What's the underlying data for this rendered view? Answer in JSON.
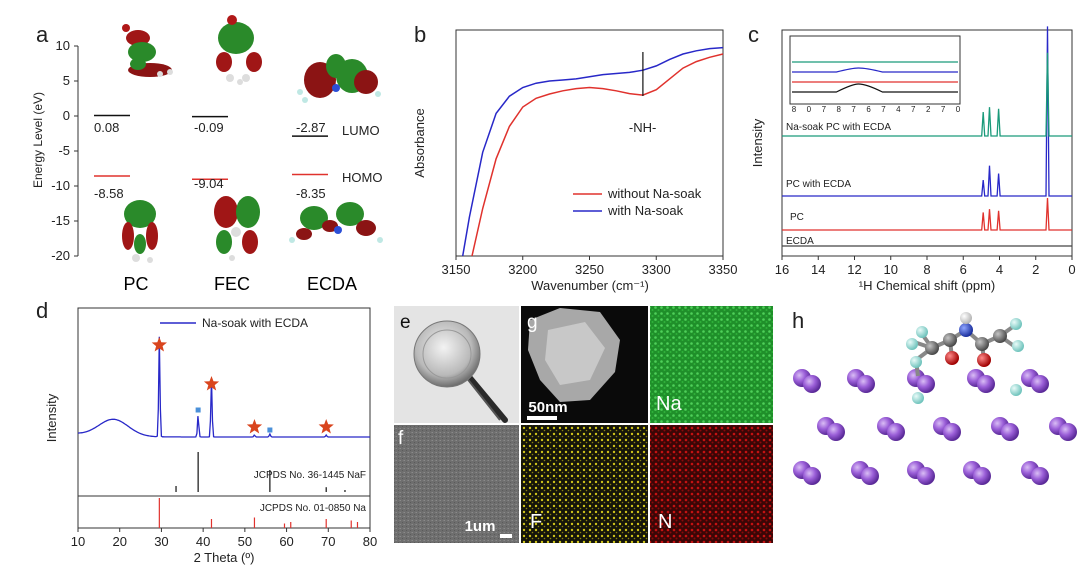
{
  "panels": {
    "a": "a",
    "b": "b",
    "c": "c",
    "d": "d",
    "e": "e",
    "f": "f",
    "g": "g",
    "h": "h"
  },
  "chart_data": [
    {
      "id": "a",
      "type": "scatter",
      "ylabel": "Energy Level (eV)",
      "ylim": [
        -20,
        10
      ],
      "yticks": [
        10,
        5,
        0,
        -5,
        -10,
        -15,
        -20
      ],
      "categories": [
        "PC",
        "FEC",
        "ECDA"
      ],
      "series": [
        {
          "name": "LUMO",
          "values": [
            0.08,
            -0.09,
            -2.87
          ],
          "labels": [
            "0.08",
            "-0.09",
            "-2.87"
          ],
          "color": "#111111"
        },
        {
          "name": "HOMO",
          "values": [
            -8.58,
            -9.04,
            -8.35
          ],
          "labels": [
            "-8.58",
            "-9.04",
            "-8.35"
          ],
          "color": "#e0322d"
        }
      ]
    },
    {
      "id": "b",
      "type": "line",
      "xlabel": "Wavenumber (cm⁻¹)",
      "ylabel": "Absorbance",
      "xlim": [
        3150,
        3350
      ],
      "xticks": [
        3150,
        3200,
        3250,
        3300,
        3350
      ],
      "annotation": "-NH-",
      "annotation_x": 3290,
      "legend_position": "bottom-right",
      "series": [
        {
          "name": "without Na-soak",
          "color": "#e0322d",
          "x": [
            3162,
            3170,
            3180,
            3190,
            3200,
            3210,
            3220,
            3230,
            3240,
            3250,
            3260,
            3270,
            3280,
            3290,
            3300,
            3310,
            3320,
            3330,
            3340,
            3350
          ],
          "values": [
            0.0,
            0.22,
            0.45,
            0.6,
            0.69,
            0.73,
            0.75,
            0.765,
            0.775,
            0.78,
            0.775,
            0.765,
            0.752,
            0.745,
            0.77,
            0.82,
            0.87,
            0.9,
            0.92,
            0.935
          ]
        },
        {
          "name": "with Na-soak",
          "color": "#2828c8",
          "x": [
            3155,
            3160,
            3170,
            3180,
            3190,
            3200,
            3210,
            3220,
            3230,
            3240,
            3250,
            3260,
            3270,
            3280,
            3290,
            3300,
            3310,
            3320,
            3330,
            3340,
            3350
          ],
          "values": [
            0.0,
            0.18,
            0.48,
            0.66,
            0.74,
            0.78,
            0.8,
            0.81,
            0.815,
            0.82,
            0.83,
            0.84,
            0.845,
            0.85,
            0.86,
            0.88,
            0.91,
            0.935,
            0.95,
            0.96,
            0.965
          ]
        }
      ]
    },
    {
      "id": "c",
      "type": "line",
      "xlabel": "¹H Chemical shift (ppm)",
      "ylabel": "Intensity",
      "xlim": [
        16,
        0
      ],
      "xticks": [
        16,
        14,
        12,
        10,
        8,
        6,
        4,
        2,
        0
      ],
      "series": [
        {
          "name": "ECDA",
          "color": "#444444",
          "peaks": []
        },
        {
          "name": "PC",
          "color": "#e0322d",
          "peaks": [
            [
              4.9,
              0.55
            ],
            [
              4.55,
              0.65
            ],
            [
              4.05,
              0.6
            ],
            [
              1.35,
              1.0
            ]
          ]
        },
        {
          "name": "PC with ECDA",
          "color": "#2828c8",
          "peaks": [
            [
              4.9,
              0.5
            ],
            [
              4.55,
              0.95
            ],
            [
              4.05,
              0.7
            ],
            [
              1.35,
              5.3
            ]
          ]
        },
        {
          "name": "Na-soak PC with ECDA",
          "color": "#1a9a7a",
          "peaks": [
            [
              4.9,
              0.75
            ],
            [
              4.55,
              0.9
            ],
            [
              4.05,
              0.85
            ],
            [
              1.35,
              2.6
            ]
          ]
        }
      ],
      "inset": {
        "xlim": [
          8,
          7
        ],
        "xticks": [
          "8",
          "0",
          "7",
          "8",
          "7",
          "6",
          "7",
          "4",
          "7",
          "2",
          "7",
          "0"
        ],
        "series": [
          {
            "name": "ECDA",
            "color": "#111111",
            "peak_x": 7.6
          },
          {
            "name": "PC",
            "color": "#e0322d",
            "peak_x": null
          },
          {
            "name": "PC with ECDA",
            "color": "#2828c8",
            "peak_x": 7.6
          },
          {
            "name": "Na-soak PC with ECDA",
            "color": "#1a9a7a",
            "peak_x": null
          }
        ]
      }
    },
    {
      "id": "d",
      "type": "line",
      "xlabel": "2 Theta (º)",
      "ylabel": "Intensity",
      "xlim": [
        10,
        80
      ],
      "xticks": [
        10,
        20,
        30,
        40,
        50,
        60,
        70,
        80
      ],
      "legend_position": "top-left",
      "series": [
        {
          "name": "Na-soak with ECDA",
          "color": "#2828c8",
          "peaks": [
            [
              29.5,
              1.0
            ],
            [
              38.8,
              0.22
            ],
            [
              42.0,
              0.58
            ],
            [
              52.3,
              0.02
            ],
            [
              56.0,
              0.03
            ],
            [
              69.5,
              0.02
            ]
          ],
          "hump": [
            18.5,
            0.17
          ]
        }
      ],
      "star_markers": [
        29.5,
        42.0,
        52.3,
        69.5
      ],
      "square_markers": [
        38.8,
        56.0
      ],
      "references": [
        {
          "label": "JCPDS No. 36-1445 NaF",
          "color": "#111111",
          "sticks": [
            [
              38.8,
              1.0
            ],
            [
              33.5,
              0.15
            ],
            [
              56.0,
              0.55
            ],
            [
              69.5,
              0.12
            ],
            [
              74.0,
              0.05
            ]
          ]
        },
        {
          "label": "JCPDS No. 01-0850 Na",
          "color": "#e0322d",
          "sticks": [
            [
              29.5,
              1.0
            ],
            [
              42.0,
              0.3
            ],
            [
              52.3,
              0.35
            ],
            [
              59.5,
              0.15
            ],
            [
              61.0,
              0.2
            ],
            [
              69.5,
              0.3
            ],
            [
              75.5,
              0.25
            ],
            [
              77.0,
              0.2
            ]
          ]
        }
      ]
    }
  ],
  "panel_e": {
    "label": "e"
  },
  "panel_f": {
    "label": "f",
    "scale_bar": "1um"
  },
  "panel_g": {
    "label": "g",
    "scale_bar": "50nm",
    "maps": [
      "Na",
      "F",
      "N"
    ],
    "map_colors": [
      "#2fb23a",
      "#d0c416",
      "#d21414"
    ]
  },
  "panel_h": {
    "label": "h",
    "atom_colors": {
      "Na": "#9b5fd8",
      "F": "#9ad9d3",
      "C": "#7a7a7a",
      "O": "#e01010",
      "N": "#2b4fd6",
      "H": "#f2f2f2"
    }
  }
}
